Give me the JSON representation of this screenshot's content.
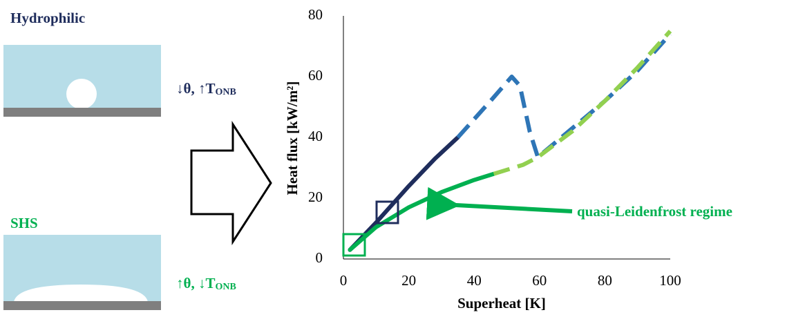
{
  "schematic": {
    "top": {
      "title": "Hydrophilic",
      "note": {
        "text": "↓θ, ↑T",
        "sub": "ONB"
      }
    },
    "bottom": {
      "title": "SHS",
      "note": {
        "text": "↑θ, ↓T",
        "sub": "ONB"
      }
    }
  },
  "chart_data": {
    "type": "line",
    "xlabel": "Superheat [K]",
    "ylabel": "Heat flux  [kW/m²]",
    "xlim": [
      0,
      100
    ],
    "xticks": [
      0,
      20,
      40,
      60,
      80,
      100
    ],
    "ylim": [
      0,
      80
    ],
    "yticks": [
      0,
      20,
      40,
      60,
      80
    ],
    "grid": false,
    "annotation": "quasi-Leidenfrost regime",
    "series": [
      {
        "color": "#1f2d5c",
        "dashed": false,
        "x": [
          2,
          10,
          20,
          28,
          35
        ],
        "values": [
          3,
          12,
          24,
          33,
          40
        ]
      },
      {
        "color": "#2e75b6",
        "dashed": true,
        "x": [
          35,
          45,
          51.5,
          54,
          57,
          59.5,
          70,
          80,
          90,
          100
        ],
        "values": [
          40,
          52,
          60,
          57,
          42,
          33.5,
          43,
          52,
          62,
          74
        ]
      },
      {
        "color": "#00b050",
        "dashed": false,
        "x": [
          2,
          10,
          20,
          30,
          40,
          46
        ],
        "values": [
          3,
          10.5,
          17,
          22,
          26,
          28
        ]
      },
      {
        "color": "#92d050",
        "dashed": true,
        "x": [
          46,
          55,
          59.5,
          70,
          80,
          90,
          100
        ],
        "values": [
          28,
          31,
          33.5,
          42,
          52,
          63,
          75
        ]
      }
    ]
  }
}
